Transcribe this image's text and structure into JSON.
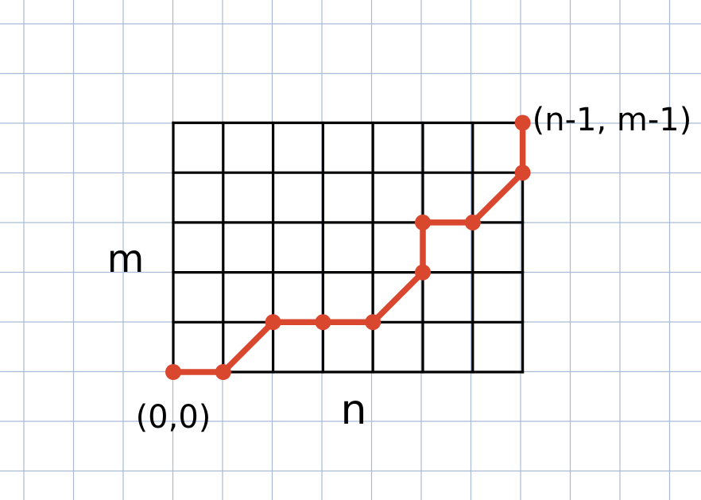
{
  "diagram": {
    "colors": {
      "paper_background": "#ffffff",
      "paper_grid": "#a9bad6",
      "lattice": "#000000",
      "path": "#d9472f",
      "ink": "#000000"
    },
    "lattice": {
      "columns": 7,
      "rows": 5
    },
    "path_nodes": [
      {
        "col": 0,
        "row": 0
      },
      {
        "col": 1,
        "row": 0
      },
      {
        "col": 2,
        "row": 1
      },
      {
        "col": 3,
        "row": 1
      },
      {
        "col": 4,
        "row": 1
      },
      {
        "col": 5,
        "row": 2
      },
      {
        "col": 5,
        "row": 3
      },
      {
        "col": 6,
        "row": 3
      },
      {
        "col": 7,
        "row": 4
      },
      {
        "col": 7,
        "row": 5
      }
    ],
    "labels": {
      "start": "(0,0)",
      "end": "(n-1, m-1)",
      "width": "n",
      "height": "m"
    }
  }
}
